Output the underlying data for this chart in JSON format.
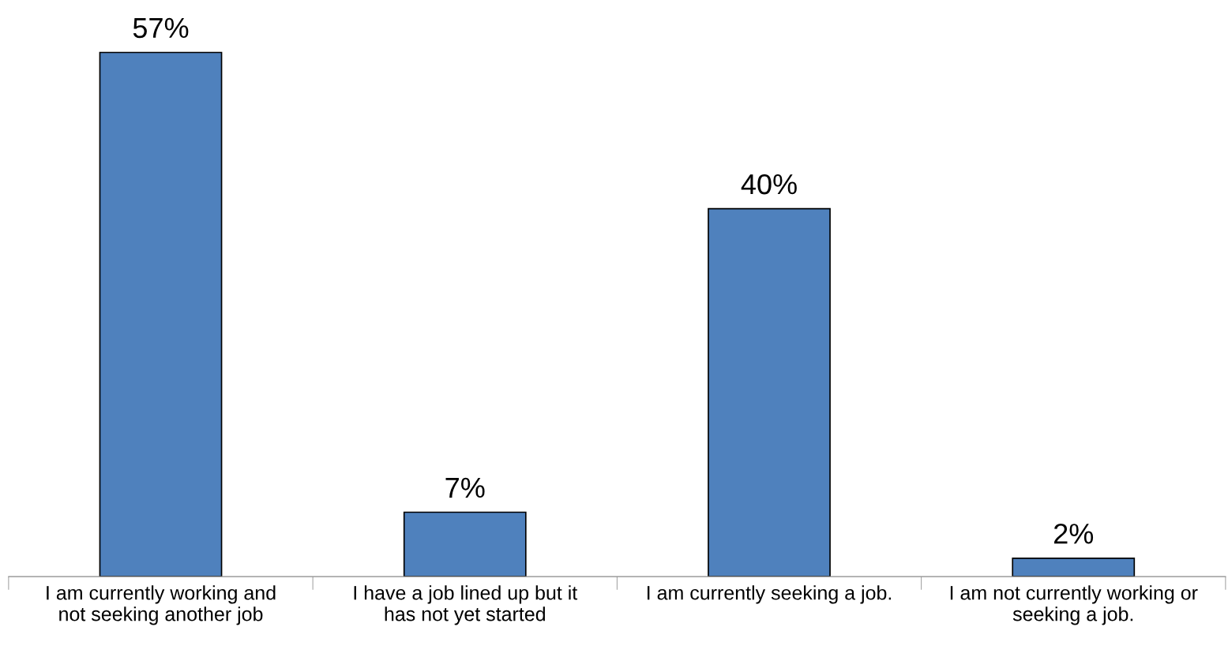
{
  "chart_data": {
    "type": "bar",
    "categories": [
      "I am currently working and\nnot seeking another job",
      "I have a job lined up but it\nhas not yet started",
      "I am currently seeking a job.",
      "I am not currently working or\nseeking a job."
    ],
    "values": [
      57,
      7,
      40,
      2
    ],
    "value_labels": [
      "57%",
      "7%",
      "40%",
      "2%"
    ],
    "color": "#4f81bd",
    "grid": false,
    "legend": false,
    "tick_labels": "x"
  }
}
